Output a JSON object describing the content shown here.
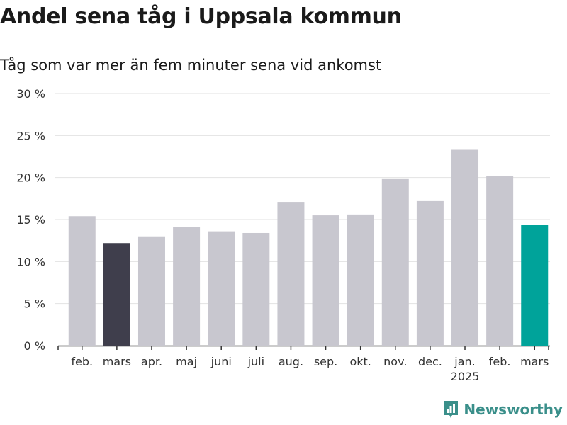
{
  "header": {
    "title": "Andel sena tåg i Uppsala kommun",
    "subtitle": "Tåg som var mer än fem minuter sena vid ankomst"
  },
  "brand": {
    "name": "Newsworthy",
    "color": "#3a8f8a"
  },
  "chart_data": {
    "type": "bar",
    "categories": [
      "feb.",
      "mars",
      "apr.",
      "maj",
      "juni",
      "juli",
      "aug.",
      "sep.",
      "okt.",
      "nov.",
      "dec.",
      "jan.",
      "feb.",
      "mars"
    ],
    "year_label": "2025",
    "values": [
      15.4,
      12.2,
      13.0,
      14.1,
      13.6,
      13.4,
      17.1,
      15.5,
      15.6,
      19.9,
      17.2,
      23.3,
      20.2,
      14.4
    ],
    "yticks": [
      "0 %",
      "5 %",
      "10 %",
      "15 %",
      "20 %",
      "25 %",
      "30 %"
    ],
    "ylim": [
      0,
      30
    ],
    "grid": true,
    "colors": {
      "default": "#c8c7cf",
      "previous_year_highlight": "#3f3e4c",
      "current_highlight": "#00a39a"
    }
  }
}
